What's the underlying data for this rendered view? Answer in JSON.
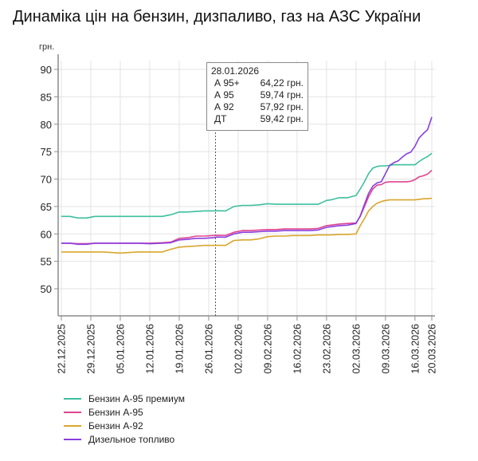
{
  "title": "Динаміка цін на бензин, дизпаливо, газ на АЗС України",
  "tooltip": {
    "date": "28.01.2026",
    "rows": [
      {
        "name": "А 95+",
        "value": "64,22 грн."
      },
      {
        "name": "А 95",
        "value": "59,74 грн."
      },
      {
        "name": "А 92",
        "value": "57,92 грн."
      },
      {
        "name": "ДТ",
        "value": "59,42 грн."
      }
    ]
  },
  "legend": [
    {
      "label": "Бензин А-95 премиум",
      "color": "#3dbf9f"
    },
    {
      "label": "Бензин А-95",
      "color": "#e0448f"
    },
    {
      "label": "Бензин А-92",
      "color": "#d9a62e"
    },
    {
      "label": "Дизельное топливо",
      "color": "#8a3ee0"
    }
  ],
  "chart_data": {
    "type": "line",
    "title": "Динаміка цін на бензин, дизпаливо, газ на АЗС України",
    "xlabel": "",
    "ylabel": "грн.",
    "ylim": [
      47,
      90
    ],
    "yticks": [
      50,
      55,
      60,
      65,
      70,
      75,
      80,
      85,
      90
    ],
    "grid": true,
    "legend_position": "bottom",
    "xtick_labels": [
      "22.12.2025",
      "29.12.2025",
      "05.01.2026",
      "12.01.2026",
      "19.01.2026",
      "26.01.2026",
      "02.02.2026",
      "09.02.2026",
      "16.02.2026",
      "23.02.2026",
      "02.03.2026",
      "09.03.2026",
      "16.03.2026",
      "20.03.2026"
    ],
    "xtick_days": [
      0,
      7,
      14,
      21,
      28,
      35,
      42,
      49,
      56,
      63,
      70,
      77,
      84,
      88
    ],
    "highlight": {
      "day": 37,
      "date": "28.01.2026"
    },
    "x_days": [
      0,
      2,
      4,
      6,
      8,
      10,
      14,
      18,
      21,
      24,
      26,
      28,
      30,
      32,
      34,
      36,
      37,
      39,
      41,
      43,
      45,
      47,
      49,
      51,
      53,
      55,
      57,
      59,
      61,
      63,
      64,
      66,
      68,
      70,
      71,
      72,
      73,
      74,
      75,
      76,
      77,
      78,
      79,
      80,
      81,
      82,
      83,
      84,
      85,
      86,
      87,
      88
    ],
    "series": [
      {
        "name": "Бензин А-95 премиум",
        "color": "#3dbf9f",
        "values": [
          63.2,
          63.2,
          62.9,
          62.9,
          63.2,
          63.2,
          63.2,
          63.2,
          63.2,
          63.2,
          63.5,
          64.0,
          64.0,
          64.1,
          64.2,
          64.2,
          64.22,
          64.2,
          65.0,
          65.2,
          65.2,
          65.3,
          65.5,
          65.4,
          65.4,
          65.4,
          65.4,
          65.4,
          65.4,
          66.1,
          66.2,
          66.6,
          66.6,
          67.0,
          68.2,
          69.5,
          71.0,
          72.0,
          72.3,
          72.4,
          72.4,
          72.5,
          72.6,
          72.6,
          72.6,
          72.6,
          72.6,
          72.6,
          73.2,
          73.7,
          74.1,
          74.7
        ]
      },
      {
        "name": "Бензин А-95",
        "color": "#e0448f",
        "values": [
          58.3,
          58.3,
          58.2,
          58.2,
          58.3,
          58.3,
          58.3,
          58.3,
          58.3,
          58.4,
          58.5,
          59.2,
          59.3,
          59.6,
          59.6,
          59.7,
          59.74,
          59.7,
          60.3,
          60.6,
          60.6,
          60.7,
          60.8,
          60.8,
          60.9,
          60.9,
          60.9,
          60.9,
          61.0,
          61.5,
          61.6,
          61.8,
          61.9,
          62.0,
          63.2,
          65.0,
          66.8,
          68.2,
          68.9,
          69.0,
          69.4,
          69.5,
          69.5,
          69.5,
          69.5,
          69.5,
          69.6,
          69.9,
          70.4,
          70.6,
          70.9,
          71.6
        ]
      },
      {
        "name": "Бензин А-92",
        "color": "#d9a62e",
        "values": [
          56.7,
          56.7,
          56.7,
          56.7,
          56.7,
          56.7,
          56.5,
          56.7,
          56.7,
          56.7,
          57.2,
          57.6,
          57.7,
          57.8,
          57.9,
          57.9,
          57.92,
          57.9,
          58.8,
          58.9,
          58.9,
          59.1,
          59.5,
          59.6,
          59.6,
          59.7,
          59.7,
          59.7,
          59.8,
          59.8,
          59.8,
          59.9,
          59.9,
          60.0,
          61.5,
          62.8,
          64.2,
          65.0,
          65.6,
          65.9,
          66.1,
          66.2,
          66.2,
          66.2,
          66.2,
          66.2,
          66.2,
          66.2,
          66.3,
          66.4,
          66.4,
          66.5
        ]
      },
      {
        "name": "Дизельное топливо",
        "color": "#8a3ee0",
        "values": [
          58.3,
          58.3,
          58.1,
          58.1,
          58.3,
          58.3,
          58.3,
          58.3,
          58.2,
          58.3,
          58.4,
          58.9,
          59.0,
          59.2,
          59.2,
          59.3,
          59.42,
          59.4,
          60.0,
          60.3,
          60.3,
          60.4,
          60.5,
          60.5,
          60.6,
          60.6,
          60.6,
          60.6,
          60.7,
          61.2,
          61.3,
          61.5,
          61.6,
          61.9,
          63.3,
          65.4,
          67.4,
          68.7,
          69.3,
          69.5,
          71.0,
          72.5,
          73.0,
          73.3,
          74.0,
          74.6,
          74.9,
          76.0,
          77.5,
          78.3,
          79.0,
          81.3
        ]
      }
    ]
  }
}
